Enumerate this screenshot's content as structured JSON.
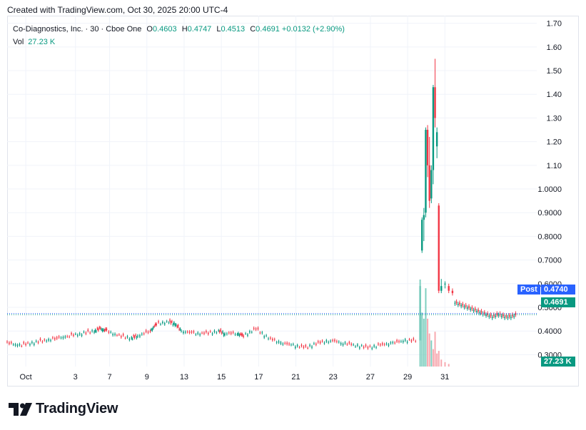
{
  "caption": "Created with TradingView.com, Oct 30, 2025 20:00 UTC-4",
  "legend": {
    "symbol": "Co-Diagnostics, Inc. · 30 · Cboe One",
    "o_label": "O",
    "o": "0.4603",
    "h_label": "H",
    "h": "0.4747",
    "l_label": "L",
    "l": "0.4513",
    "c_label": "C",
    "c": "0.4691",
    "change": "+0.0132 (+2.90%)",
    "vol_label": "Vol",
    "vol": "27.23 K"
  },
  "tags": {
    "post_label": "Post",
    "post_value": "0.4740",
    "last_value": "0.4691",
    "vol_value": "27.23 K"
  },
  "brand": "TradingView",
  "colors": {
    "up": "#089981",
    "down": "#f23645",
    "post": "#2962ff",
    "grid": "#f0f3fa",
    "text": "#131722"
  },
  "chart_data": {
    "type": "candlestick",
    "symbol": "Co-Diagnostics, Inc.",
    "interval": "30",
    "exchange": "Cboe One",
    "price_axis": {
      "ticks": [
        "0.3000",
        "0.4000",
        "0.5000",
        "0.6000",
        "0.7000",
        "0.8000",
        "0.9000",
        "1.0000",
        "1.10",
        "1.20",
        "1.30",
        "1.40",
        "1.50",
        "1.60",
        "1.70"
      ],
      "range": [
        0.25,
        1.72
      ]
    },
    "time_axis": {
      "ticks": [
        "Oct",
        "3",
        "7",
        "9",
        "13",
        "15",
        "17",
        "21",
        "23",
        "27",
        "29",
        "31"
      ]
    },
    "close_series": [
      {
        "t": 0,
        "c": 0.35
      },
      {
        "t": 2,
        "c": 0.34
      },
      {
        "t": 4,
        "c": 0.35
      },
      {
        "t": 6,
        "c": 0.36
      },
      {
        "t": 8,
        "c": 0.37
      },
      {
        "t": 10,
        "c": 0.38
      },
      {
        "t": 12,
        "c": 0.39
      },
      {
        "t": 14,
        "c": 0.4
      },
      {
        "t": 15,
        "c": 0.41
      },
      {
        "t": 16,
        "c": 0.4
      },
      {
        "t": 18,
        "c": 0.38
      },
      {
        "t": 20,
        "c": 0.37
      },
      {
        "t": 21,
        "c": 0.38
      },
      {
        "t": 23,
        "c": 0.4
      },
      {
        "t": 24,
        "c": 0.43
      },
      {
        "t": 26,
        "c": 0.44
      },
      {
        "t": 27,
        "c": 0.43
      },
      {
        "t": 28,
        "c": 0.4
      },
      {
        "t": 30,
        "c": 0.39
      },
      {
        "t": 32,
        "c": 0.39
      },
      {
        "t": 34,
        "c": 0.4
      },
      {
        "t": 35,
        "c": 0.39
      },
      {
        "t": 37,
        "c": 0.39
      },
      {
        "t": 38,
        "c": 0.38
      },
      {
        "t": 40,
        "c": 0.41
      },
      {
        "t": 42,
        "c": 0.37
      },
      {
        "t": 44,
        "c": 0.35
      },
      {
        "t": 46,
        "c": 0.34
      },
      {
        "t": 48,
        "c": 0.33
      },
      {
        "t": 50,
        "c": 0.35
      },
      {
        "t": 52,
        "c": 0.36
      },
      {
        "t": 54,
        "c": 0.35
      },
      {
        "t": 56,
        "c": 0.34
      },
      {
        "t": 58,
        "c": 0.33
      },
      {
        "t": 60,
        "c": 0.34
      },
      {
        "t": 62,
        "c": 0.35
      },
      {
        "t": 64,
        "c": 0.36
      },
      {
        "t": 66,
        "c": 0.36
      }
    ],
    "spike_candles": [
      {
        "t": 66.4,
        "o": 0.36,
        "h": 0.6,
        "l": 0.35,
        "c": 0.59
      },
      {
        "t": 66.7,
        "o": 0.74,
        "h": 0.88,
        "l": 0.73,
        "c": 0.87
      },
      {
        "t": 67.0,
        "o": 0.87,
        "h": 0.92,
        "l": 0.78,
        "c": 0.89
      },
      {
        "t": 67.3,
        "o": 0.9,
        "h": 1.26,
        "l": 0.88,
        "c": 1.25
      },
      {
        "t": 67.6,
        "o": 1.25,
        "h": 1.27,
        "l": 1.05,
        "c": 1.1
      },
      {
        "t": 67.9,
        "o": 1.1,
        "h": 1.22,
        "l": 0.92,
        "c": 0.95
      },
      {
        "t": 68.2,
        "o": 0.96,
        "h": 1.1,
        "l": 0.94,
        "c": 1.08
      },
      {
        "t": 68.5,
        "o": 1.08,
        "h": 1.44,
        "l": 1.02,
        "c": 1.43
      },
      {
        "t": 68.8,
        "o": 1.43,
        "h": 1.55,
        "l": 1.26,
        "c": 1.3
      },
      {
        "t": 69.1,
        "o": 1.18,
        "h": 1.26,
        "l": 1.13,
        "c": 1.24
      },
      {
        "t": 69.4,
        "o": 0.93,
        "h": 0.94,
        "l": 0.56,
        "c": 0.57
      },
      {
        "t": 69.8,
        "o": 0.57,
        "h": 0.62,
        "l": 0.56,
        "c": 0.59
      },
      {
        "t": 70.4,
        "o": 0.6,
        "h": 0.61,
        "l": 0.58,
        "c": 0.6
      },
      {
        "t": 71.0,
        "o": 0.59,
        "h": 0.6,
        "l": 0.56,
        "c": 0.57
      },
      {
        "t": 71.6,
        "o": 0.57,
        "h": 0.58,
        "l": 0.55,
        "c": 0.56
      }
    ],
    "tail_series": [
      {
        "t": 72,
        "c": 0.52
      },
      {
        "t": 73,
        "c": 0.51
      },
      {
        "t": 74,
        "c": 0.5
      },
      {
        "t": 75,
        "c": 0.49
      },
      {
        "t": 76,
        "c": 0.48
      },
      {
        "t": 77,
        "c": 0.47
      },
      {
        "t": 78,
        "c": 0.46
      },
      {
        "t": 79,
        "c": 0.47
      },
      {
        "t": 80,
        "c": 0.46
      },
      {
        "t": 81,
        "c": 0.46
      },
      {
        "t": 82,
        "c": 0.47
      }
    ],
    "volume_spike": [
      {
        "t": 66.4,
        "v": 1.0,
        "dir": "up"
      },
      {
        "t": 66.7,
        "v": 0.62,
        "dir": "up"
      },
      {
        "t": 67.0,
        "v": 0.55,
        "dir": "up"
      },
      {
        "t": 67.3,
        "v": 0.9,
        "dir": "up"
      },
      {
        "t": 67.6,
        "v": 0.55,
        "dir": "down"
      },
      {
        "t": 67.9,
        "v": 0.38,
        "dir": "down"
      },
      {
        "t": 68.2,
        "v": 0.3,
        "dir": "up"
      },
      {
        "t": 68.5,
        "v": 0.2,
        "dir": "down"
      },
      {
        "t": 68.8,
        "v": 0.4,
        "dir": "down"
      },
      {
        "t": 69.1,
        "v": 0.15,
        "dir": "down"
      },
      {
        "t": 69.4,
        "v": 0.18,
        "dir": "down"
      },
      {
        "t": 69.8,
        "v": 0.08,
        "dir": "down"
      },
      {
        "t": 70.4,
        "v": 0.05,
        "dir": "down"
      },
      {
        "t": 71.0,
        "v": 0.03,
        "dir": "down"
      }
    ],
    "post_price": 0.474,
    "last_price": 0.4691,
    "grid": true
  }
}
